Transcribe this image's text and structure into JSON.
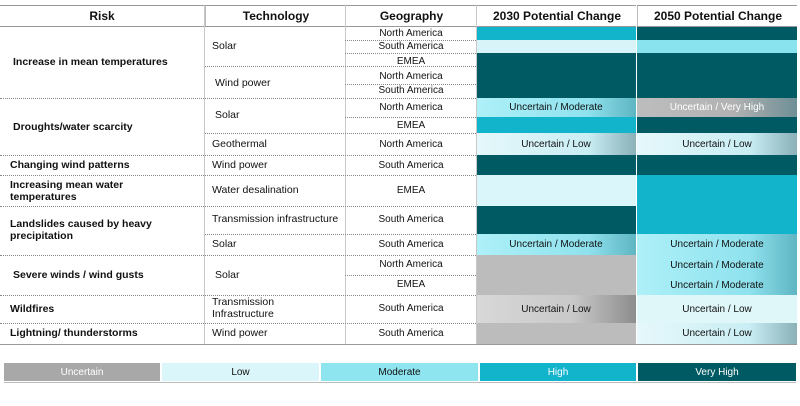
{
  "headers": {
    "risk": "Risk",
    "technology": "Technology",
    "geography": "Geography",
    "change_2030": "2030 Potential Change",
    "change_2050": "2050 Potential Change"
  },
  "risks": {
    "r1": "Increase in mean temperatures",
    "r2": "Droughts/water scarcity",
    "r3": "Changing wind patterns",
    "r4": "Increasing mean water temperatures",
    "r5": "Landslides caused by heavy precipitation",
    "r6": "Severe winds / wind gusts",
    "r7": "Wildfires",
    "r8": "Lightning/ thunderstorms"
  },
  "technologies": {
    "t1": "Solar",
    "t2": "Wind power",
    "t3": "Solar",
    "t4": "Geothermal",
    "t5": "Wind power",
    "t6": "Water desalination",
    "t7": "Transmission infrastructure",
    "t8": "Solar",
    "t9": "Solar",
    "t10": "Transmission Infrastructure",
    "t11": "Wind power"
  },
  "geographies": [
    "North America",
    "South America",
    "EMEA",
    "North America",
    "South America",
    "North America",
    "EMEA",
    "North America",
    "South America",
    "EMEA",
    "South America",
    "South America",
    "North America",
    "EMEA",
    "South America",
    "South America"
  ],
  "cells": {
    "c2030_r6": "Uncertain / Moderate",
    "c2050_r6": "Uncertain / Very High",
    "c2030_r8": "Uncertain / Low",
    "c2050_r8": "Uncertain / Low",
    "c2030_r11": "Uncertain / Moderate",
    "c2050_r11": "Uncertain / Moderate",
    "c2050_r12": "Uncertain / Moderate",
    "c2050_r13": "Uncertain / Moderate",
    "c2030_r14": "Uncertain / Low",
    "c2050_r14": "Uncertain / Low",
    "c2050_r15": "Uncertain / Low"
  },
  "colors": {
    "very_high": "#005a63",
    "high": "#11b1c8",
    "moderate": "#88e3ef",
    "low": "#dbf6fa",
    "uncertain": "#b4b4b4"
  },
  "legend": [
    "Uncertain",
    "Low",
    "Moderate",
    "High",
    "Very High"
  ]
}
